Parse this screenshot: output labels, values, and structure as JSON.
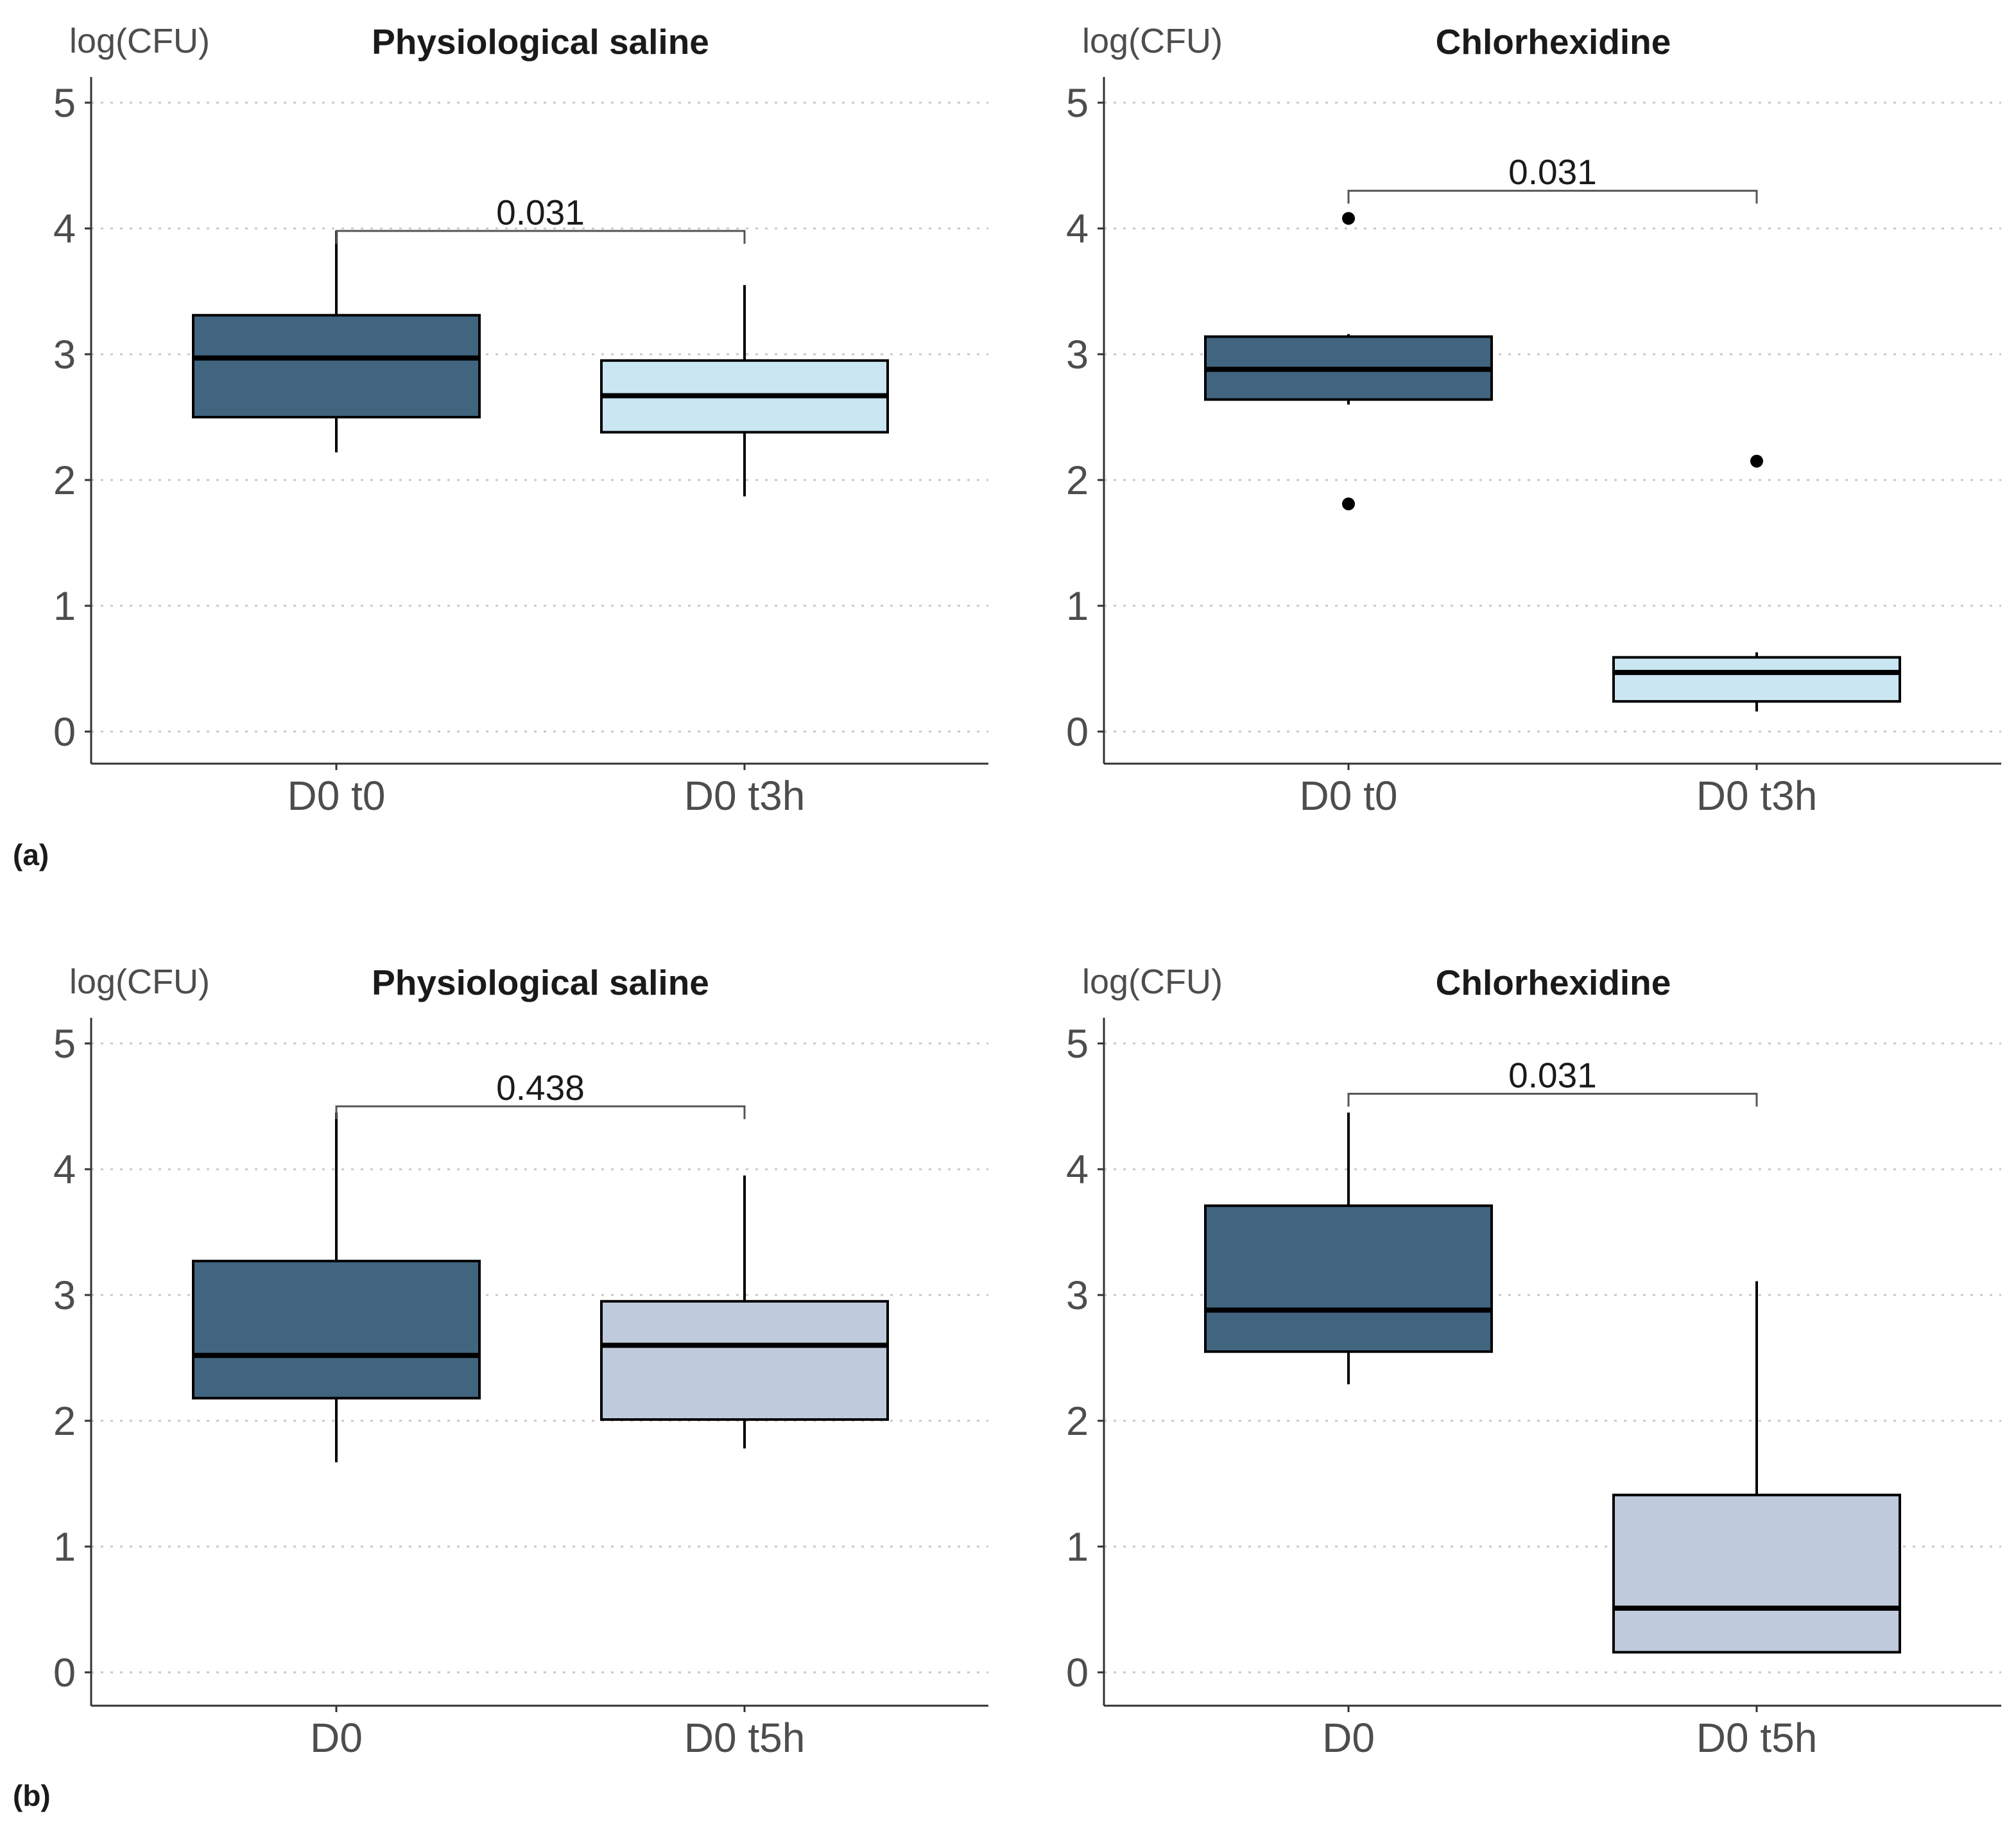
{
  "figure_labels": [
    "(a)",
    "(b)"
  ],
  "colors": {
    "dark_box": "#41657f",
    "light_blue_box": "#c9e6f2",
    "grey_blue_box": "#bfcbdc",
    "grid": "#c8c8c8",
    "ink": "#000000",
    "bracket": "#555555"
  },
  "chart_data": [
    {
      "type": "box",
      "group": "(a)",
      "title": "Physiological saline",
      "ylabel": "log(CFU)",
      "ylim": [
        0,
        5
      ],
      "yticks": [
        0,
        1,
        2,
        3,
        4,
        5
      ],
      "grid": "horizontal dotted",
      "categories": [
        "D0 t0",
        "D0 t3h"
      ],
      "boxes": [
        {
          "category": "D0 t0",
          "whisker_low": 2.22,
          "q1": 2.5,
          "median": 2.97,
          "q3": 3.31,
          "whisker_high": 3.98,
          "outliers": [],
          "fill": "dark_box"
        },
        {
          "category": "D0 t3h",
          "whisker_low": 1.87,
          "q1": 2.38,
          "median": 2.67,
          "q3": 2.95,
          "whisker_high": 3.55,
          "outliers": [],
          "fill": "light_blue_box"
        }
      ],
      "comparison": {
        "label": "0.031",
        "y": 3.98
      }
    },
    {
      "type": "box",
      "group": "(a)",
      "title": "Chlorhexidine",
      "ylabel": "log(CFU)",
      "ylim": [
        0,
        5
      ],
      "yticks": [
        0,
        1,
        2,
        3,
        4,
        5
      ],
      "grid": "horizontal dotted",
      "categories": [
        "D0 t0",
        "D0 t3h"
      ],
      "boxes": [
        {
          "category": "D0 t0",
          "whisker_low": 2.6,
          "q1": 2.64,
          "median": 2.88,
          "q3": 3.14,
          "whisker_high": 3.16,
          "outliers": [
            4.08,
            1.81
          ],
          "fill": "dark_box"
        },
        {
          "category": "D0 t3h",
          "whisker_low": 0.16,
          "q1": 0.24,
          "median": 0.47,
          "q3": 0.59,
          "whisker_high": 0.63,
          "outliers": [
            2.15
          ],
          "fill": "light_blue_box"
        }
      ],
      "comparison": {
        "label": "0.031",
        "y": 4.3
      }
    },
    {
      "type": "box",
      "group": "(b)",
      "title": "Physiological saline",
      "ylabel": "log(CFU)",
      "ylim": [
        0,
        5
      ],
      "yticks": [
        0,
        1,
        2,
        3,
        4,
        5
      ],
      "grid": "horizontal dotted",
      "categories": [
        "D0",
        "D0 t5h"
      ],
      "boxes": [
        {
          "category": "D0",
          "whisker_low": 1.67,
          "q1": 2.18,
          "median": 2.52,
          "q3": 3.27,
          "whisker_high": 4.45,
          "outliers": [],
          "fill": "dark_box"
        },
        {
          "category": "D0 t5h",
          "whisker_low": 1.78,
          "q1": 2.01,
          "median": 2.6,
          "q3": 2.95,
          "whisker_high": 3.95,
          "outliers": [],
          "fill": "grey_blue_box"
        }
      ],
      "comparison": {
        "label": "0.438",
        "y": 4.5
      }
    },
    {
      "type": "box",
      "group": "(b)",
      "title": "Chlorhexidine",
      "ylabel": "log(CFU)",
      "ylim": [
        0,
        5
      ],
      "yticks": [
        0,
        1,
        2,
        3,
        4,
        5
      ],
      "grid": "horizontal dotted",
      "categories": [
        "D0",
        "D0 t5h"
      ],
      "boxes": [
        {
          "category": "D0",
          "whisker_low": 2.29,
          "q1": 2.55,
          "median": 2.88,
          "q3": 3.71,
          "whisker_high": 4.45,
          "outliers": [],
          "fill": "dark_box"
        },
        {
          "category": "D0 t5h",
          "whisker_low": 0.16,
          "q1": 0.16,
          "median": 0.51,
          "q3": 1.41,
          "whisker_high": 3.11,
          "outliers": [],
          "fill": "grey_blue_box"
        }
      ],
      "comparison": {
        "label": "0.031",
        "y": 4.6
      }
    }
  ]
}
